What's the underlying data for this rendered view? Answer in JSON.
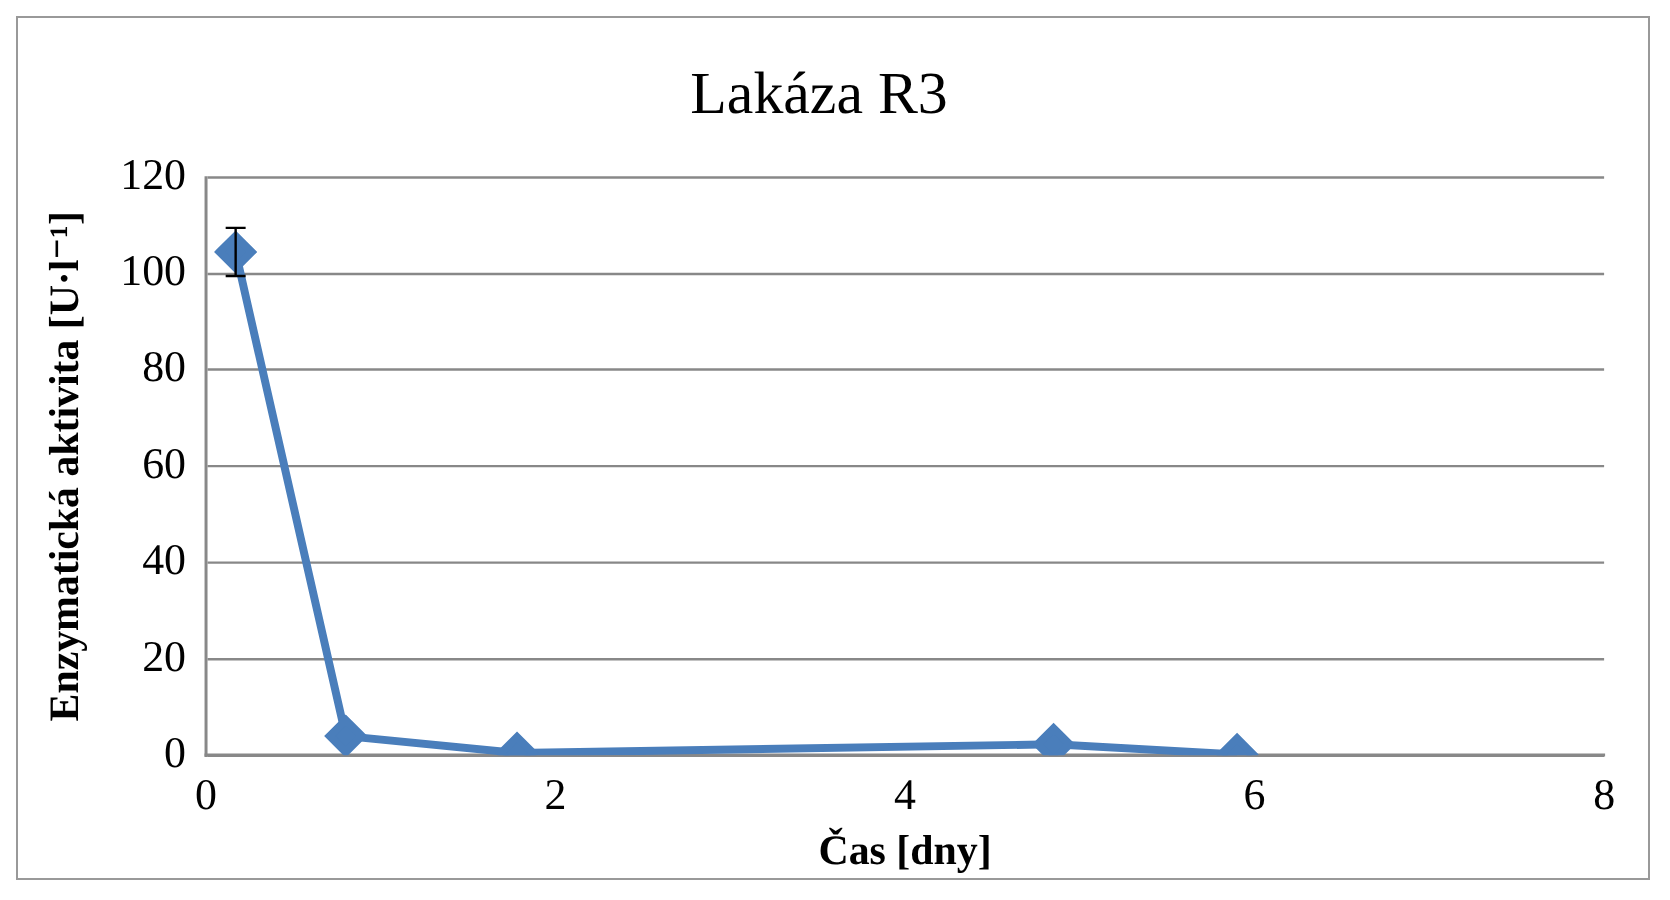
{
  "chart_data": {
    "type": "line",
    "title": "Lakáza R3",
    "xlabel": "Čas [dny]",
    "ylabel": "Enzymatická aktivita [U·l⁻¹]",
    "x": [
      0.17,
      0.8,
      1.78,
      4.85,
      5.9
    ],
    "series": [
      {
        "color": "#4a7ebb",
        "values": [
          104.5,
          4,
          0.5,
          2.3,
          0.2
        ],
        "errors": [
          5,
          null,
          null,
          null,
          null
        ]
      }
    ],
    "xlim": [
      0,
      8
    ],
    "xticks": [
      0,
      2,
      4,
      6,
      8
    ],
    "ylim": [
      0,
      120
    ],
    "yticks": [
      0,
      20,
      40,
      60,
      80,
      100,
      120
    ],
    "grid": "y",
    "legend": false,
    "marker": "diamond",
    "line_style": "solid"
  }
}
